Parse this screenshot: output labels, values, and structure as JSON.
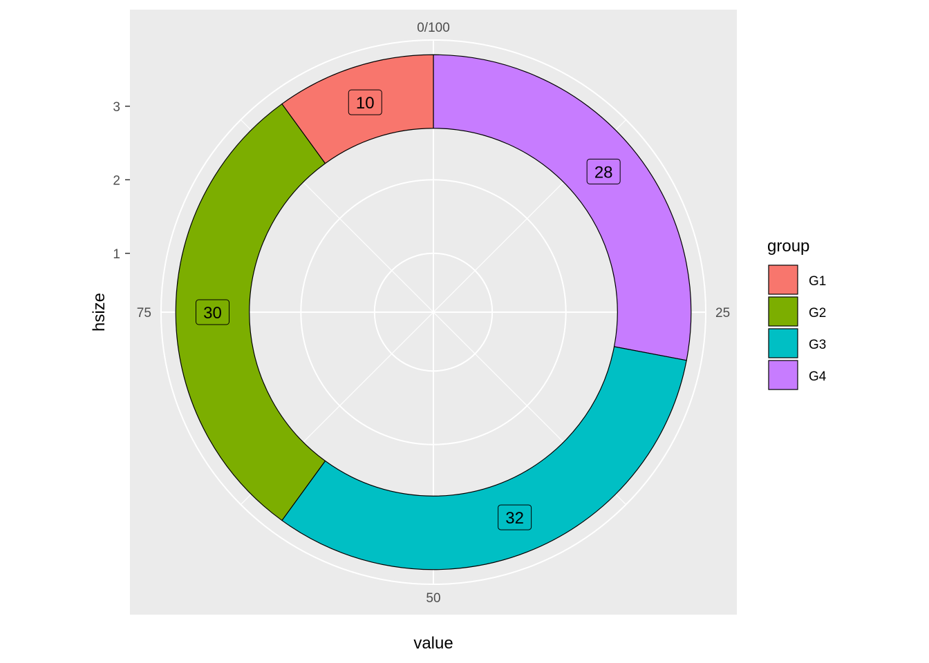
{
  "chart_data": {
    "type": "pie",
    "subtype": "donut (polar coordinates, ggplot2 style)",
    "xlabel": "value",
    "ylabel": "hsize",
    "angle_axis": {
      "range": [
        0,
        100
      ],
      "ticks": [
        {
          "value": 0,
          "label": "0/100"
        },
        {
          "value": 25,
          "label": "25"
        },
        {
          "value": 50,
          "label": "50"
        },
        {
          "value": 75,
          "label": "75"
        }
      ]
    },
    "radial_axis": {
      "ticks": [
        "1",
        "2",
        "3"
      ],
      "inner_radius": 2.5,
      "outer_radius": 3.5
    },
    "legend": {
      "title": "group",
      "position": "right"
    },
    "slices": [
      {
        "group": "G4",
        "value": 28,
        "label": "28",
        "color": "#C77CFF"
      },
      {
        "group": "G3",
        "value": 32,
        "label": "32",
        "color": "#00BFC4"
      },
      {
        "group": "G2",
        "value": 30,
        "label": "30",
        "color": "#7CAE00"
      },
      {
        "group": "G1",
        "value": 10,
        "label": "10",
        "color": "#F8766D"
      }
    ],
    "legend_items": [
      {
        "label": "G1",
        "color": "#F8766D"
      },
      {
        "label": "G2",
        "color": "#7CAE00"
      },
      {
        "label": "G3",
        "color": "#00BFC4"
      },
      {
        "label": "G4",
        "color": "#C77CFF"
      }
    ],
    "panel_background": "#EBEBEB",
    "grid_color": "#FFFFFF",
    "grid": true
  }
}
